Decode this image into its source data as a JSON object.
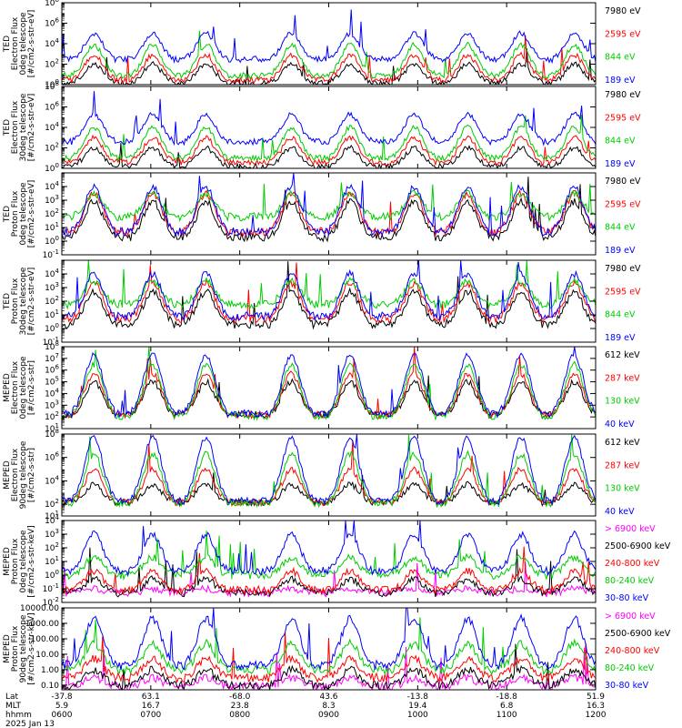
{
  "chart_data": [
    {
      "type": "line",
      "instrument": "TED",
      "ylabel": [
        "TED",
        "Electron Flux",
        "0deg telescope",
        "[#/cm2-s-str-eV]"
      ],
      "ylog": true,
      "ylim": [
        1,
        100000000
      ],
      "yticks": [
        {
          "v": 1,
          "e": "0"
        },
        {
          "v": 100,
          "e": "2"
        },
        {
          "v": 10000,
          "e": "4"
        },
        {
          "v": 1000000,
          "e": "6"
        },
        {
          "v": 100000000,
          "e": "8"
        }
      ],
      "series": [
        {
          "name": "7980 eV",
          "color": "#000000",
          "base": 1.5,
          "peak": 100
        },
        {
          "name": "2595 eV",
          "color": "#ff0000",
          "base": 3,
          "peak": 800
        },
        {
          "name": "844 eV",
          "color": "#00cc00",
          "base": 8,
          "peak": 8000
        },
        {
          "name": "189 eV",
          "color": "#0000ff",
          "base": 300,
          "peak": 100000
        }
      ]
    },
    {
      "type": "line",
      "instrument": "TED",
      "ylabel": [
        "TED",
        "Electron Flux",
        "30deg telescope",
        "[#/cm2-s-str-eV]"
      ],
      "ylog": true,
      "ylim": [
        1,
        100000000
      ],
      "yticks": [
        {
          "v": 1,
          "e": "0"
        },
        {
          "v": 100,
          "e": "2"
        },
        {
          "v": 10000,
          "e": "4"
        },
        {
          "v": 1000000,
          "e": "6"
        },
        {
          "v": 100000000,
          "e": "8"
        }
      ],
      "series": [
        {
          "name": "7980 eV",
          "color": "#000000",
          "base": 1.5,
          "peak": 100
        },
        {
          "name": "2595 eV",
          "color": "#ff0000",
          "base": 4,
          "peak": 1000
        },
        {
          "name": "844 eV",
          "color": "#00cc00",
          "base": 10,
          "peak": 10000
        },
        {
          "name": "189 eV",
          "color": "#0000ff",
          "base": 400,
          "peak": 200000
        }
      ]
    },
    {
      "type": "line",
      "instrument": "TED",
      "ylabel": [
        "TED",
        "Proton Flux",
        "0deg telescope",
        "[#/cm2-s-str-eV]"
      ],
      "ylog": true,
      "ylim": [
        0.1,
        100000
      ],
      "yticks": [
        {
          "v": 0.1,
          "e": "-1"
        },
        {
          "v": 1,
          "e": "0"
        },
        {
          "v": 10,
          "e": "1"
        },
        {
          "v": 100,
          "e": "2"
        },
        {
          "v": 1000,
          "e": "3"
        },
        {
          "v": 10000,
          "e": "4"
        }
      ],
      "series": [
        {
          "name": "7980 eV",
          "color": "#000000",
          "base": 2,
          "peak": 800
        },
        {
          "name": "2595 eV",
          "color": "#ff0000",
          "base": 5,
          "peak": 3000
        },
        {
          "name": "844 eV",
          "color": "#00cc00",
          "base": 60,
          "peak": 3000
        },
        {
          "name": "189 eV",
          "color": "#0000ff",
          "base": 5,
          "peak": 10000
        }
      ]
    },
    {
      "type": "line",
      "instrument": "TED",
      "ylabel": [
        "TED",
        "Proton Flux",
        "30deg telescope",
        "[#/cm2-s-str-eV]"
      ],
      "ylog": true,
      "ylim": [
        0.1,
        100000
      ],
      "yticks": [
        {
          "v": 0.1,
          "e": "-1"
        },
        {
          "v": 1,
          "e": "0"
        },
        {
          "v": 10,
          "e": "1"
        },
        {
          "v": 100,
          "e": "2"
        },
        {
          "v": 1000,
          "e": "3"
        },
        {
          "v": 10000,
          "e": "4"
        }
      ],
      "series": [
        {
          "name": "7980 eV",
          "color": "#000000",
          "base": 2,
          "peak": 500
        },
        {
          "name": "2595 eV",
          "color": "#ff0000",
          "base": 5,
          "peak": 2000
        },
        {
          "name": "844 eV",
          "color": "#00cc00",
          "base": 60,
          "peak": 3000
        },
        {
          "name": "189 eV",
          "color": "#0000ff",
          "base": 8,
          "peak": 10000
        }
      ]
    },
    {
      "type": "line",
      "instrument": "MEPED",
      "ylabel": [
        "MEPED",
        "Electron Flux",
        "0deg telescope",
        "[#/cm2-s-str]"
      ],
      "ylog": true,
      "ylim": [
        10,
        100000000
      ],
      "yticks": [
        {
          "v": 10,
          "e": "1"
        },
        {
          "v": 100,
          "e": "2"
        },
        {
          "v": 1000,
          "e": "3"
        },
        {
          "v": 10000,
          "e": "4"
        },
        {
          "v": 100000,
          "e": "5"
        },
        {
          "v": 1000000,
          "e": "6"
        },
        {
          "v": 10000000,
          "e": "7"
        },
        {
          "v": 100000000,
          "e": "8"
        }
      ],
      "series": [
        {
          "name": "612 keV",
          "color": "#000000",
          "base": 150,
          "peak": 100000
        },
        {
          "name": "287 keV",
          "color": "#ff0000",
          "base": 150,
          "peak": 500000
        },
        {
          "name": "130 keV",
          "color": "#00cc00",
          "base": 120,
          "peak": 3000000
        },
        {
          "name": "40 keV",
          "color": "#0000ff",
          "base": 200,
          "peak": 20000000
        }
      ]
    },
    {
      "type": "line",
      "instrument": "MEPED",
      "ylabel": [
        "MEPED",
        "Electron Flux",
        "90deg telescope",
        "[#/cm2-s-str]"
      ],
      "ylog": true,
      "ylim": [
        10,
        100000000
      ],
      "yticks": [
        {
          "v": 10,
          "e": "1"
        },
        {
          "v": 100,
          "e": "2"
        },
        {
          "v": 10000,
          "e": "4"
        },
        {
          "v": 1000000,
          "e": "6"
        },
        {
          "v": 100000000,
          "e": "8"
        }
      ],
      "series": [
        {
          "name": "612 keV",
          "color": "#000000",
          "base": 150,
          "peak": 5000
        },
        {
          "name": "287 keV",
          "color": "#ff0000",
          "base": 150,
          "peak": 100000
        },
        {
          "name": "130 keV",
          "color": "#00cc00",
          "base": 120,
          "peak": 2000000
        },
        {
          "name": "40 keV",
          "color": "#0000ff",
          "base": 200,
          "peak": 50000000
        }
      ]
    },
    {
      "type": "line",
      "instrument": "MEPED",
      "ylabel": [
        "MEPED",
        "Proton Flux",
        "0deg telescope",
        "[#/cm2-s-str-keV]"
      ],
      "ylog": true,
      "ylim": [
        0.01,
        10000
      ],
      "yticks": [
        {
          "v": 0.01,
          "e": "-2"
        },
        {
          "v": 0.1,
          "e": "-1"
        },
        {
          "v": 1,
          "e": "0"
        },
        {
          "v": 10,
          "e": "1"
        },
        {
          "v": 100,
          "e": "2"
        },
        {
          "v": 1000,
          "e": "3"
        },
        {
          "v": 10000,
          "e": "4"
        }
      ],
      "series": [
        {
          "name": "> 6900 keV",
          "color": "#ff00ff",
          "base": 0.05,
          "peak": 0.1
        },
        {
          "name": "2500-6900 keV",
          "color": "#000000",
          "base": 0.05,
          "peak": 0.5
        },
        {
          "name": "240-800 keV",
          "color": "#ff0000",
          "base": 0.08,
          "peak": 2
        },
        {
          "name": "80-240 keV",
          "color": "#00cc00",
          "base": 1,
          "peak": 20
        },
        {
          "name": "30-80 keV",
          "color": "#0000ff",
          "base": 2,
          "peak": 1000
        }
      ]
    },
    {
      "type": "line",
      "instrument": "MEPED",
      "ylabel": [
        "MEPED",
        "Proton Flux",
        "90deg telescope",
        "[#/cm2-s-str-keV]"
      ],
      "ylog": true,
      "ylim": [
        0.05,
        10000
      ],
      "ytick_labels": [
        "0.10",
        "1.00",
        "10.00",
        "100.00",
        "1000.00",
        "10000.00"
      ],
      "yticks_v": [
        0.1,
        1,
        10,
        100,
        1000,
        10000
      ],
      "series": [
        {
          "name": "> 6900 keV",
          "color": "#ff00ff",
          "base": 0.08,
          "peak": 0.3
        },
        {
          "name": "2500-6900 keV",
          "color": "#000000",
          "base": 0.1,
          "peak": 1
        },
        {
          "name": "240-800 keV",
          "color": "#ff0000",
          "base": 0.3,
          "peak": 5
        },
        {
          "name": "80-240 keV",
          "color": "#00cc00",
          "base": 1,
          "peak": 50
        },
        {
          "name": "30-80 keV",
          "color": "#0000ff",
          "base": 2,
          "peak": 2000
        }
      ]
    }
  ],
  "xaxis": {
    "row_labels": [
      "Lat",
      "MLT",
      "hhmm",
      "2025 Jan 13"
    ],
    "ticks": [
      {
        "lat": "-37.8",
        "mlt": "5.9",
        "hhmm": "0600"
      },
      {
        "lat": "63.1",
        "mlt": "16.7",
        "hhmm": "0700"
      },
      {
        "lat": "-68.0",
        "mlt": "23.8",
        "hhmm": "0800"
      },
      {
        "lat": "43.6",
        "mlt": "8.3",
        "hhmm": "0900"
      },
      {
        "lat": "-13.8",
        "mlt": "19.4",
        "hhmm": "1000"
      },
      {
        "lat": "-18.8",
        "mlt": "6.8",
        "hhmm": "1100"
      },
      {
        "lat": "51.9",
        "mlt": "16.3",
        "hhmm": "1200"
      }
    ]
  }
}
